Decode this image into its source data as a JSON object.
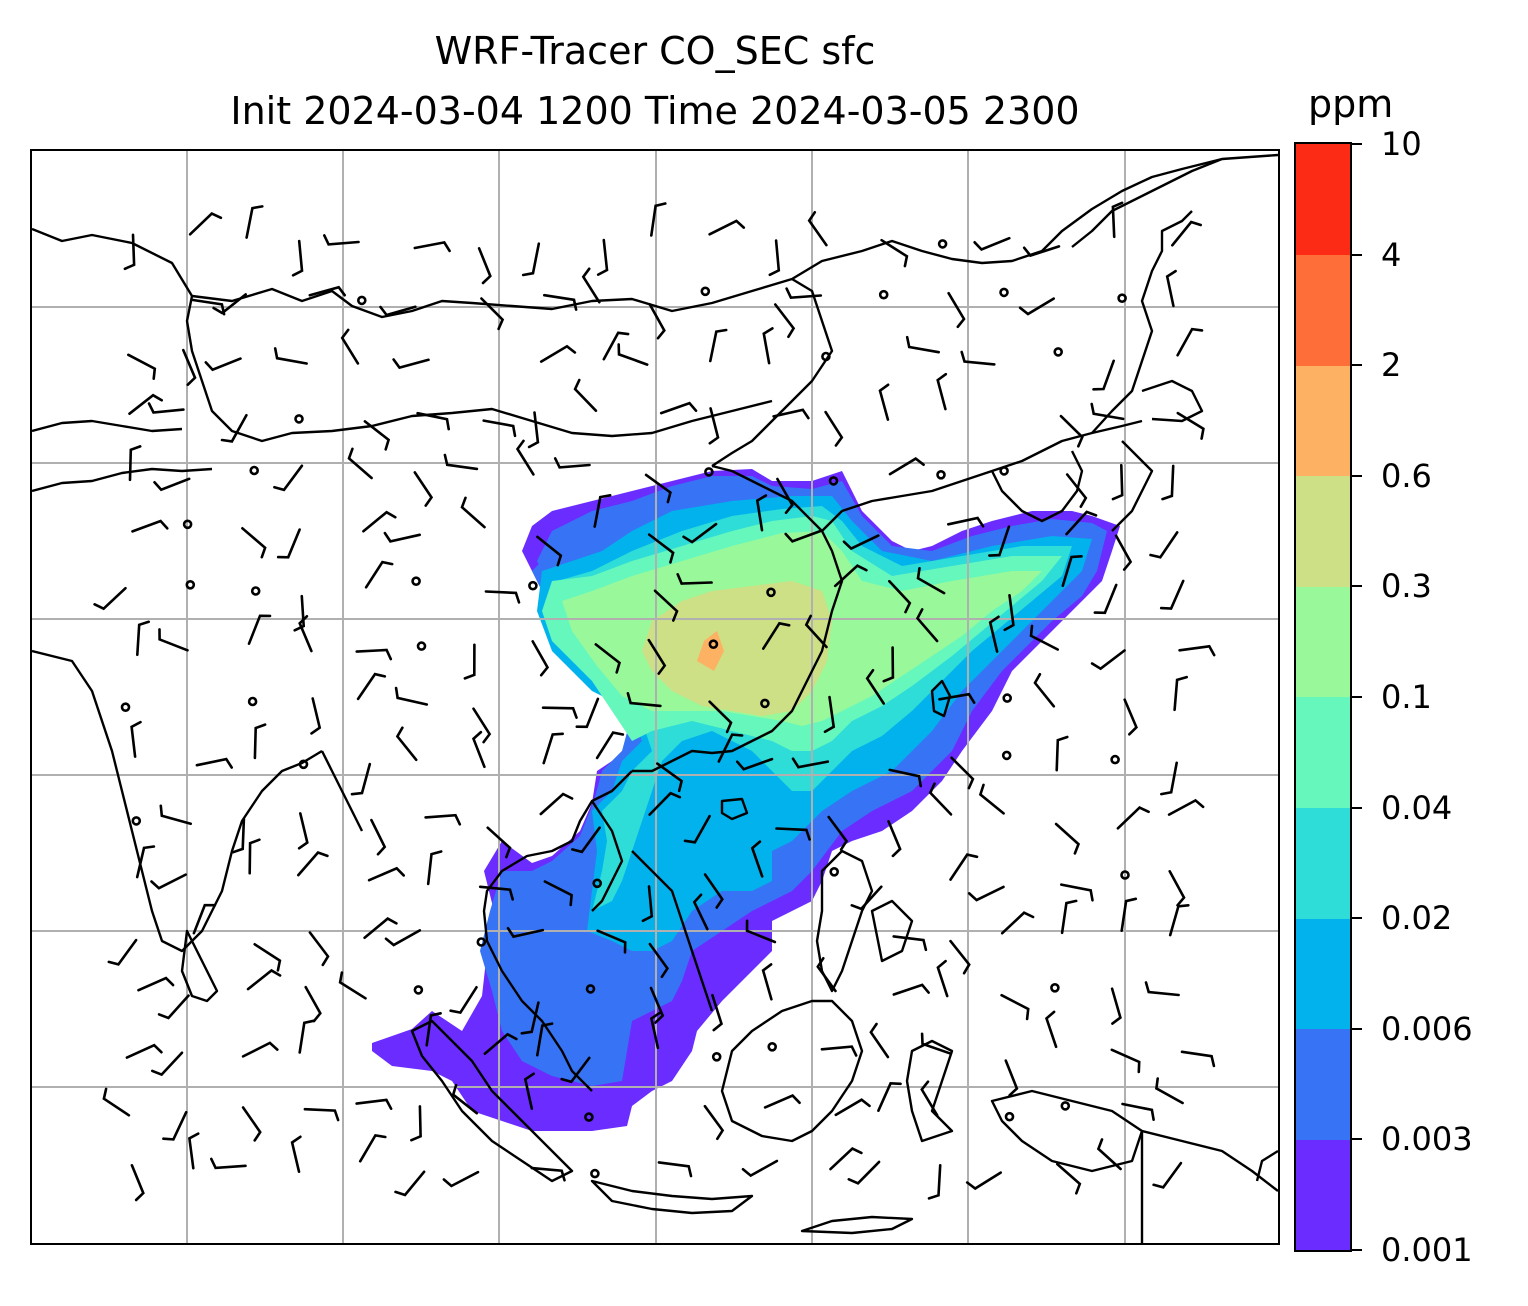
{
  "title": {
    "line1": "WRF-Tracer CO_SEC sfc",
    "line2": "Init 2024-03-04 1200 Time 2024-03-05 2300"
  },
  "colorbar": {
    "units": "ppm",
    "levels": [
      "0.001",
      "0.003",
      "0.006",
      "0.02",
      "0.04",
      "0.1",
      "0.3",
      "0.6",
      "2",
      "4",
      "10"
    ],
    "colors": [
      "#6a2cff",
      "#3674f5",
      "#02b2ec",
      "#2edcd8",
      "#66f7bd",
      "#98f89a",
      "#cde085",
      "#fdb163",
      "#fd6e39",
      "#fb2b15"
    ]
  },
  "map": {
    "gridlines": true,
    "coastline_color": "#000000",
    "grid_color": "#b0b0b0",
    "wind_barb_color": "#000000"
  }
}
